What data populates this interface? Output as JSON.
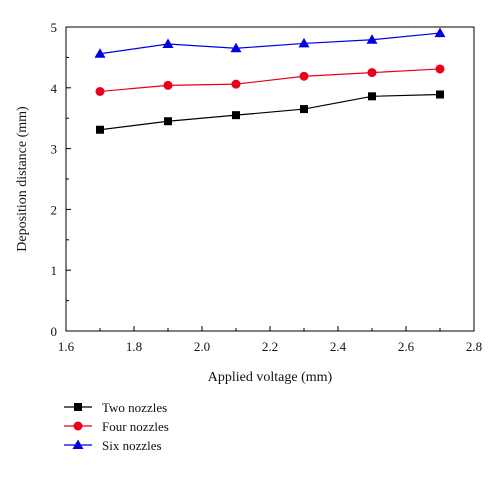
{
  "chart_data": {
    "type": "line",
    "title": "",
    "xlabel": "Applied voltage (mm)",
    "ylabel": "Deposition distance (mm)",
    "xlim": [
      1.6,
      2.8
    ],
    "ylim": [
      0,
      5
    ],
    "x_ticks": [
      "1.6",
      "1.8",
      "2.0",
      "2.2",
      "2.4",
      "2.6",
      "2.8"
    ],
    "y_ticks": [
      "0",
      "1",
      "2",
      "3",
      "4",
      "5"
    ],
    "grid": false,
    "legend_position": "bottom-left, below plot",
    "x": [
      1.7,
      1.9,
      2.1,
      2.3,
      2.5,
      2.7
    ],
    "series": [
      {
        "name": "Two nozzles",
        "color": "#000000",
        "marker": "square",
        "values": [
          3.31,
          3.45,
          3.55,
          3.65,
          3.86,
          3.89
        ]
      },
      {
        "name": "Four nozzles",
        "color": "#e8001c",
        "marker": "circle",
        "values": [
          3.94,
          4.04,
          4.06,
          4.19,
          4.25,
          4.31
        ]
      },
      {
        "name": "Six nozzles",
        "color": "#0000e0",
        "marker": "triangle",
        "values": [
          4.56,
          4.72,
          4.65,
          4.73,
          4.79,
          4.9
        ]
      }
    ]
  }
}
